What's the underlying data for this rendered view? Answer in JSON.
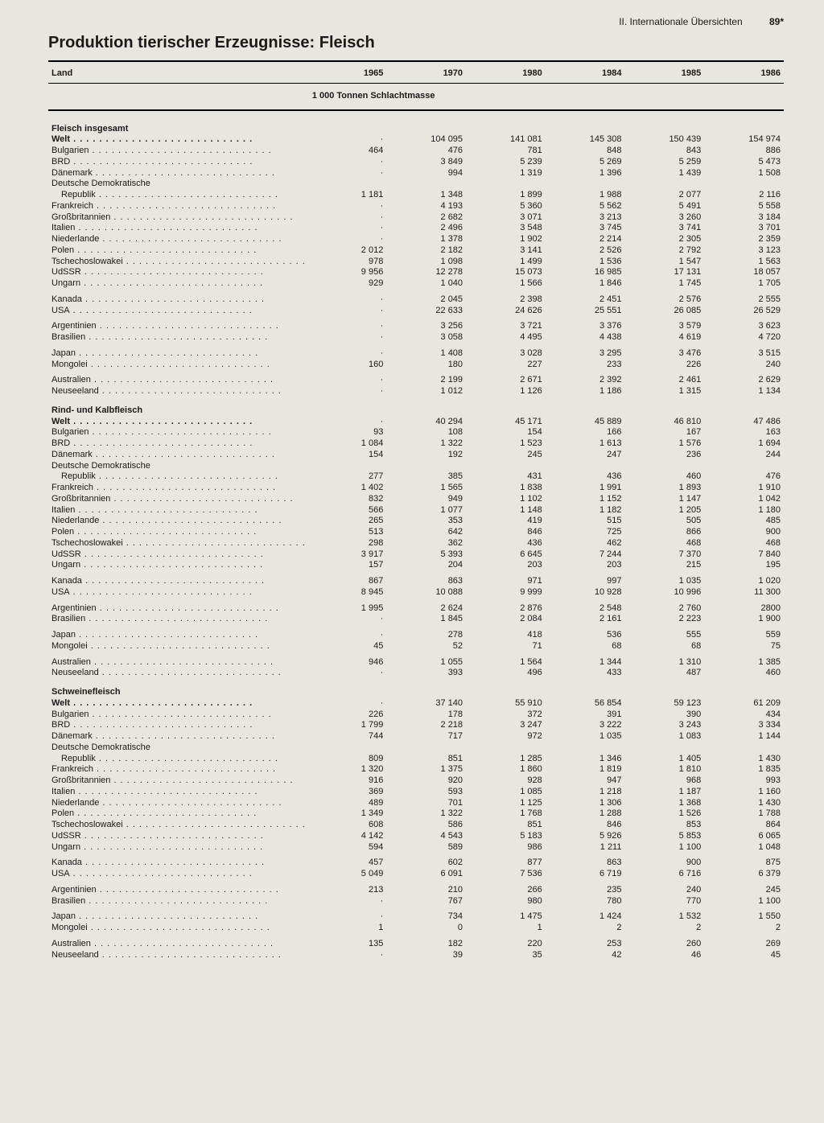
{
  "header": {
    "section": "II. Internationale Übersichten",
    "page": "89*"
  },
  "title": "Produktion tierischer Erzeugnisse: Fleisch",
  "columns": {
    "label": "Land",
    "years": [
      "1965",
      "1970",
      "1980",
      "1984",
      "1985",
      "1986"
    ]
  },
  "unit": "1 000 Tonnen Schlachtmasse",
  "sections": [
    {
      "name": "Fleisch insgesamt",
      "welt": [
        "·",
        "104 095",
        "141 081",
        "145 308",
        "150 439",
        "154 974"
      ],
      "groups": [
        [
          {
            "l": "Bulgarien",
            "v": [
              "464",
              "476",
              "781",
              "848",
              "843",
              "886"
            ]
          },
          {
            "l": "BRD",
            "v": [
              "·",
              "3 849",
              "5 239",
              "5 269",
              "5 259",
              "5 473"
            ]
          },
          {
            "l": "Dänemark",
            "v": [
              "·",
              "994",
              "1 319",
              "1 396",
              "1 439",
              "1 508"
            ]
          },
          {
            "l": "Deutsche Demokratische",
            "cont": true,
            "v": [
              "",
              "",
              "",
              "",
              "",
              ""
            ]
          },
          {
            "l": "Republik",
            "sub": true,
            "v": [
              "1 181",
              "1 348",
              "1 899",
              "1 988",
              "2 077",
              "2 116"
            ]
          },
          {
            "l": "Frankreich",
            "v": [
              "·",
              "4 193",
              "5 360",
              "5 562",
              "5 491",
              "5 558"
            ]
          },
          {
            "l": "Großbritannien",
            "v": [
              "·",
              "2 682",
              "3 071",
              "3 213",
              "3 260",
              "3 184"
            ]
          },
          {
            "l": "Italien",
            "v": [
              "·",
              "2 496",
              "3 548",
              "3 745",
              "3 741",
              "3 701"
            ]
          },
          {
            "l": "Niederlande",
            "v": [
              "·",
              "1 378",
              "1 902",
              "2 214",
              "2 305",
              "2 359"
            ]
          },
          {
            "l": "Polen",
            "v": [
              "2 012",
              "2 182",
              "3 141",
              "2 526",
              "2 792",
              "3 123"
            ]
          },
          {
            "l": "Tschechoslowakei",
            "v": [
              "978",
              "1 098",
              "1 499",
              "1 536",
              "1 547",
              "1 563"
            ]
          },
          {
            "l": "UdSSR",
            "v": [
              "9 956",
              "12 278",
              "15 073",
              "16 985",
              "17 131",
              "18 057"
            ]
          },
          {
            "l": "Ungarn",
            "v": [
              "929",
              "1 040",
              "1 566",
              "1 846",
              "1 745",
              "1 705"
            ]
          }
        ],
        [
          {
            "l": "Kanada",
            "v": [
              "·",
              "2 045",
              "2 398",
              "2 451",
              "2 576",
              "2 555"
            ]
          },
          {
            "l": "USA",
            "v": [
              "·",
              "22 633",
              "24 626",
              "25 551",
              "26 085",
              "26 529"
            ]
          }
        ],
        [
          {
            "l": "Argentinien",
            "v": [
              "·",
              "3 256",
              "3 721",
              "3 376",
              "3 579",
              "3 623"
            ]
          },
          {
            "l": "Brasilien",
            "v": [
              "·",
              "3 058",
              "4 495",
              "4 438",
              "4 619",
              "4 720"
            ]
          }
        ],
        [
          {
            "l": "Japan",
            "v": [
              "·",
              "1 408",
              "3 028",
              "3 295",
              "3 476",
              "3 515"
            ]
          },
          {
            "l": "Mongolei",
            "v": [
              "160",
              "180",
              "227",
              "233",
              "226",
              "240"
            ]
          }
        ],
        [
          {
            "l": "Australien",
            "v": [
              "·",
              "2 199",
              "2 671",
              "2 392",
              "2 461",
              "2 629"
            ]
          },
          {
            "l": "Neuseeland",
            "v": [
              "·",
              "1 012",
              "1 126",
              "1 186",
              "1 315",
              "1 134"
            ]
          }
        ]
      ]
    },
    {
      "name": "Rind- und Kalbfleisch",
      "welt": [
        "·",
        "40 294",
        "45 171",
        "45 889",
        "46 810",
        "47 486"
      ],
      "groups": [
        [
          {
            "l": "Bulgarien",
            "v": [
              "93",
              "108",
              "154",
              "166",
              "167",
              "163"
            ]
          },
          {
            "l": "BRD",
            "v": [
              "1 084",
              "1 322",
              "1 523",
              "1 613",
              "1 576",
              "1 694"
            ]
          },
          {
            "l": "Dänemark",
            "v": [
              "154",
              "192",
              "245",
              "247",
              "236",
              "244"
            ]
          },
          {
            "l": "Deutsche Demokratische",
            "cont": true,
            "v": [
              "",
              "",
              "",
              "",
              "",
              ""
            ]
          },
          {
            "l": "Republik",
            "sub": true,
            "v": [
              "277",
              "385",
              "431",
              "436",
              "460",
              "476"
            ]
          },
          {
            "l": "Frankreich",
            "v": [
              "1 402",
              "1 565",
              "1 838",
              "1 991",
              "1 893",
              "1 910"
            ]
          },
          {
            "l": "Großbritannien",
            "v": [
              "832",
              "949",
              "1 102",
              "1 152",
              "1 147",
              "1 042"
            ]
          },
          {
            "l": "Italien",
            "v": [
              "566",
              "1 077",
              "1 148",
              "1 182",
              "1 205",
              "1 180"
            ]
          },
          {
            "l": "Niederlande",
            "v": [
              "265",
              "353",
              "419",
              "515",
              "505",
              "485"
            ]
          },
          {
            "l": "Polen",
            "v": [
              "513",
              "642",
              "846",
              "725",
              "866",
              "900"
            ]
          },
          {
            "l": "Tschechoslowakei",
            "v": [
              "298",
              "362",
              "436",
              "462",
              "468",
              "468"
            ]
          },
          {
            "l": "UdSSR",
            "v": [
              "3 917",
              "5 393",
              "6 645",
              "7 244",
              "7 370",
              "7 840"
            ]
          },
          {
            "l": "Ungarn",
            "v": [
              "157",
              "204",
              "203",
              "203",
              "215",
              "195"
            ]
          }
        ],
        [
          {
            "l": "Kanada",
            "v": [
              "867",
              "863",
              "971",
              "997",
              "1 035",
              "1 020"
            ]
          },
          {
            "l": "USA",
            "v": [
              "8 945",
              "10 088",
              "9 999",
              "10 928",
              "10 996",
              "11 300"
            ]
          }
        ],
        [
          {
            "l": "Argentinien",
            "v": [
              "1 995",
              "2 624",
              "2 876",
              "2 548",
              "2 760",
              "2800"
            ]
          },
          {
            "l": "Brasilien",
            "v": [
              "·",
              "1 845",
              "2 084",
              "2 161",
              "2 223",
              "1 900"
            ]
          }
        ],
        [
          {
            "l": "Japan",
            "v": [
              "·",
              "278",
              "418",
              "536",
              "555",
              "559"
            ]
          },
          {
            "l": "Mongolei",
            "v": [
              "45",
              "52",
              "71",
              "68",
              "68",
              "75"
            ]
          }
        ],
        [
          {
            "l": "Australien",
            "v": [
              "946",
              "1 055",
              "1 564",
              "1 344",
              "1 310",
              "1 385"
            ]
          },
          {
            "l": "Neuseeland",
            "v": [
              "·",
              "393",
              "496",
              "433",
              "487",
              "460"
            ]
          }
        ]
      ]
    },
    {
      "name": "Schweinefleisch",
      "welt": [
        "·",
        "37 140",
        "55 910",
        "56 854",
        "59 123",
        "61 209"
      ],
      "groups": [
        [
          {
            "l": "Bulgarien",
            "v": [
              "226",
              "178",
              "372",
              "391",
              "390",
              "434"
            ]
          },
          {
            "l": "BRD",
            "v": [
              "1 799",
              "2 218",
              "3 247",
              "3 222",
              "3 243",
              "3 334"
            ]
          },
          {
            "l": "Dänemark",
            "v": [
              "744",
              "717",
              "972",
              "1 035",
              "1 083",
              "1 144"
            ]
          },
          {
            "l": "Deutsche Demokratische",
            "cont": true,
            "v": [
              "",
              "",
              "",
              "",
              "",
              ""
            ]
          },
          {
            "l": "Republik",
            "sub": true,
            "v": [
              "809",
              "851",
              "1 285",
              "1 346",
              "1 405",
              "1 430"
            ]
          },
          {
            "l": "Frankreich",
            "v": [
              "1 320",
              "1 375",
              "1 860",
              "1 819",
              "1 810",
              "1 835"
            ]
          },
          {
            "l": "Großbritannien",
            "v": [
              "916",
              "920",
              "928",
              "947",
              "968",
              "993"
            ]
          },
          {
            "l": "Italien",
            "v": [
              "369",
              "593",
              "1 085",
              "1 218",
              "1 187",
              "1 160"
            ]
          },
          {
            "l": "Niederlande",
            "v": [
              "489",
              "701",
              "1 125",
              "1 306",
              "1 368",
              "1 430"
            ]
          },
          {
            "l": "Polen",
            "v": [
              "1 349",
              "1 322",
              "1 768",
              "1 288",
              "1 526",
              "1 788"
            ]
          },
          {
            "l": "Tschechoslowakei",
            "v": [
              "608",
              "586",
              "851",
              "846",
              "853",
              "864"
            ]
          },
          {
            "l": "UdSSR",
            "v": [
              "4 142",
              "4 543",
              "5 183",
              "5 926",
              "5 853",
              "6 065"
            ]
          },
          {
            "l": "Ungarn",
            "v": [
              "594",
              "589",
              "986",
              "1 211",
              "1 100",
              "1 048"
            ]
          }
        ],
        [
          {
            "l": "Kanada",
            "v": [
              "457",
              "602",
              "877",
              "863",
              "900",
              "875"
            ]
          },
          {
            "l": "USA",
            "v": [
              "5 049",
              "6 091",
              "7 536",
              "6 719",
              "6 716",
              "6 379"
            ]
          }
        ],
        [
          {
            "l": "Argentinien",
            "v": [
              "213",
              "210",
              "266",
              "235",
              "240",
              "245"
            ]
          },
          {
            "l": "Brasilien",
            "v": [
              "·",
              "767",
              "980",
              "780",
              "770",
              "1 100"
            ]
          }
        ],
        [
          {
            "l": "Japan",
            "v": [
              "·",
              "734",
              "1 475",
              "1 424",
              "1 532",
              "1 550"
            ]
          },
          {
            "l": "Mongolei",
            "v": [
              "1",
              "0",
              "1",
              "2",
              "2",
              "2"
            ]
          }
        ],
        [
          {
            "l": "Australien",
            "v": [
              "135",
              "182",
              "220",
              "253",
              "260",
              "269"
            ]
          },
          {
            "l": "Neuseeland",
            "v": [
              "·",
              "39",
              "35",
              "42",
              "46",
              "45"
            ]
          }
        ]
      ]
    }
  ]
}
